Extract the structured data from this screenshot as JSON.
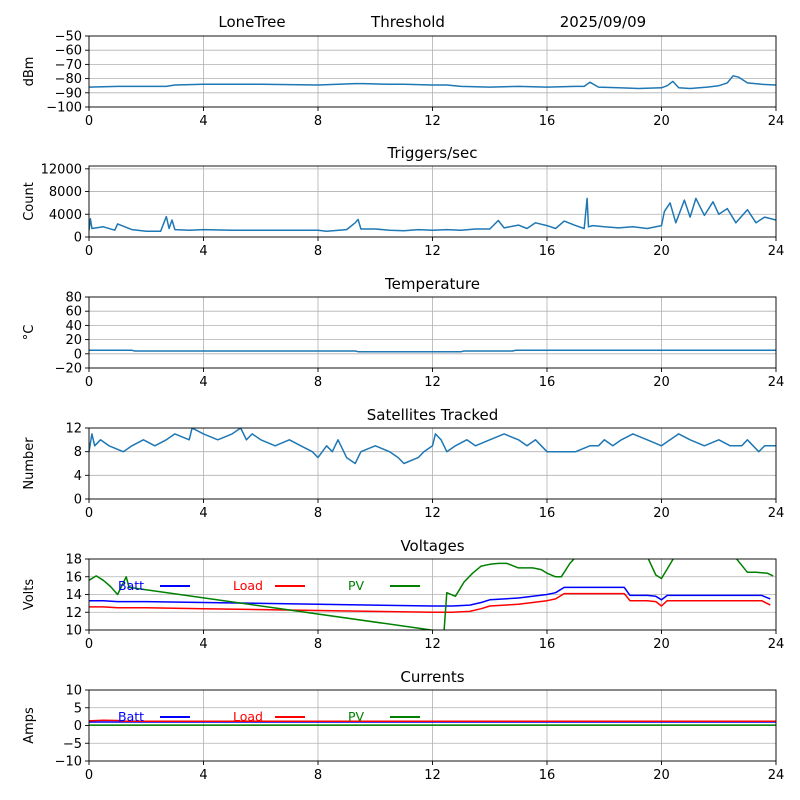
{
  "header": {
    "station": "LoneTree",
    "mode": "Threshold",
    "date": "2025/09/09"
  },
  "colors": {
    "series": "#1f77b4",
    "batt": "#0000ff",
    "load": "#ff0000",
    "pv": "#008000",
    "grid": "#b0b0b0"
  },
  "chart_data": [
    {
      "type": "line",
      "title": "",
      "ylabel": "dBm",
      "xlim": [
        0,
        24
      ],
      "ylim": [
        -100,
        -50
      ],
      "xticks": [
        "0",
        "4",
        "8",
        "12",
        "16",
        "20",
        "24"
      ],
      "yticks": [
        -100,
        -90,
        -80,
        -70,
        -60,
        -50
      ],
      "ytick_labels": [
        "−100",
        "−90",
        "−80",
        "−70",
        "−60",
        "−50"
      ],
      "grid": true,
      "series": [
        {
          "x": [
            0,
            1,
            2,
            2.7,
            3,
            4,
            6,
            8,
            9.3,
            9.6,
            10.5,
            11,
            12,
            12.5,
            13,
            14,
            15,
            16,
            17,
            17.3,
            17.5,
            17.8,
            18.5,
            19.2,
            20,
            20.2,
            20.4,
            20.6,
            21,
            21.6,
            22,
            22.3,
            22.5,
            22.7,
            23,
            23.5,
            24
          ],
          "y": [
            -86,
            -85.5,
            -85.5,
            -85.5,
            -84.5,
            -84,
            -84,
            -84.5,
            -83.5,
            -83.5,
            -84,
            -84,
            -84.5,
            -84.5,
            -85.5,
            -86,
            -85.5,
            -86,
            -85.5,
            -85.5,
            -82.5,
            -86,
            -86.5,
            -87,
            -86.5,
            -85,
            -82,
            -86.5,
            -87,
            -86,
            -85,
            -83,
            -78,
            -79,
            -83,
            -84,
            -84.5
          ]
        }
      ]
    },
    {
      "type": "line",
      "title": "Triggers/sec",
      "ylabel": "Count",
      "xlim": [
        0,
        24
      ],
      "ylim": [
        0,
        12500
      ],
      "xticks": [
        "0",
        "4",
        "8",
        "12",
        "16",
        "20",
        "24"
      ],
      "yticks": [
        0,
        4000,
        8000,
        12000
      ],
      "ytick_labels": [
        "0",
        "4000",
        "8000",
        "12000"
      ],
      "grid": true,
      "series": [
        {
          "x": [
            0,
            0.05,
            0.1,
            0.5,
            0.9,
            1,
            1.5,
            2,
            2.5,
            2.7,
            2.8,
            2.9,
            3,
            3.5,
            4,
            5,
            6,
            7,
            8,
            8.3,
            9,
            9.3,
            9.4,
            9.5,
            10,
            10.5,
            11,
            11.5,
            12,
            12.5,
            13,
            13.5,
            14,
            14.3,
            14.5,
            15,
            15.3,
            15.6,
            16,
            16.3,
            16.6,
            17,
            17.3,
            17.4,
            17.45,
            17.6,
            18,
            18.5,
            19,
            19.5,
            20,
            20.1,
            20.3,
            20.5,
            20.8,
            21,
            21.2,
            21.5,
            21.8,
            22,
            22.3,
            22.6,
            23,
            23.3,
            23.6,
            24
          ],
          "y": [
            1200,
            3200,
            1500,
            1800,
            1200,
            2300,
            1300,
            1000,
            1000,
            3600,
            1500,
            3000,
            1300,
            1200,
            1300,
            1200,
            1200,
            1200,
            1200,
            1000,
            1300,
            2500,
            3100,
            1400,
            1400,
            1200,
            1100,
            1300,
            1200,
            1300,
            1200,
            1400,
            1400,
            2900,
            1600,
            2100,
            1500,
            2500,
            2000,
            1500,
            2800,
            2000,
            1500,
            6800,
            1800,
            2000,
            1800,
            1600,
            1800,
            1500,
            2000,
            4500,
            6000,
            2500,
            6500,
            3500,
            6800,
            3800,
            6200,
            4000,
            5000,
            2500,
            4800,
            2500,
            3500,
            3000
          ]
        }
      ]
    },
    {
      "type": "line",
      "title": "Temperature",
      "ylabel": "°C",
      "xlim": [
        0,
        24
      ],
      "ylim": [
        -20,
        80
      ],
      "xticks": [
        "0",
        "4",
        "8",
        "12",
        "16",
        "20",
        "24"
      ],
      "yticks": [
        -20,
        0,
        20,
        40,
        60,
        80
      ],
      "ytick_labels": [
        "−20",
        "0",
        "20",
        "40",
        "60",
        "80"
      ],
      "grid": true,
      "series": [
        {
          "x": [
            0,
            1.5,
            1.6,
            9.3,
            9.4,
            13,
            13.1,
            14.8,
            14.9,
            24
          ],
          "y": [
            5,
            5,
            4,
            4,
            3,
            3,
            4,
            4,
            5,
            5
          ]
        }
      ]
    },
    {
      "type": "line",
      "title": "Satellites Tracked",
      "ylabel": "Number",
      "xlim": [
        0,
        24
      ],
      "ylim": [
        0,
        12
      ],
      "xticks": [
        "0",
        "4",
        "8",
        "12",
        "16",
        "20",
        "24"
      ],
      "yticks": [
        0,
        4,
        8,
        12
      ],
      "ytick_labels": [
        "0",
        "4",
        "8",
        "12"
      ],
      "grid": true,
      "series": [
        {
          "x": [
            0,
            0.1,
            0.2,
            0.4,
            0.7,
            1.2,
            1.5,
            1.9,
            2.3,
            2.7,
            3,
            3.5,
            3.6,
            4,
            4.5,
            5,
            5.3,
            5.5,
            5.7,
            6,
            6.5,
            7,
            7.4,
            7.8,
            8,
            8.3,
            8.5,
            8.7,
            9,
            9.3,
            9.5,
            10,
            10.5,
            10.8,
            11,
            11.5,
            11.7,
            12,
            12.1,
            12.3,
            12.5,
            12.8,
            13.2,
            13.5,
            14,
            14.5,
            15,
            15.3,
            15.6,
            16,
            16.5,
            17,
            17.5,
            17.8,
            18,
            18.3,
            18.6,
            19,
            19.5,
            20,
            20.3,
            20.6,
            21,
            21.5,
            22,
            22.4,
            22.8,
            23,
            23.2,
            23.4,
            23.6,
            24
          ],
          "y": [
            8,
            11,
            9,
            10,
            9,
            8,
            9,
            10,
            9,
            10,
            11,
            10,
            12,
            11,
            10,
            11,
            12,
            10,
            11,
            10,
            9,
            10,
            9,
            8,
            7,
            9,
            8,
            10,
            7,
            6,
            8,
            9,
            8,
            7,
            6,
            7,
            8,
            9,
            11,
            10,
            8,
            9,
            10,
            9,
            10,
            11,
            10,
            9,
            10,
            8,
            8,
            8,
            9,
            9,
            10,
            9,
            10,
            11,
            10,
            9,
            10,
            11,
            10,
            9,
            10,
            9,
            9,
            10,
            9,
            8,
            9,
            9
          ]
        }
      ]
    },
    {
      "type": "line",
      "title": "Voltages",
      "ylabel": "Volts",
      "xlim": [
        0,
        24
      ],
      "ylim": [
        10,
        18
      ],
      "xticks": [
        "0",
        "4",
        "8",
        "12",
        "16",
        "20",
        "24"
      ],
      "yticks": [
        10,
        12,
        14,
        16,
        18
      ],
      "ytick_labels": [
        "10",
        "12",
        "14",
        "16",
        "18"
      ],
      "grid": true,
      "legend": "top-left",
      "series": [
        {
          "name": "Batt",
          "color": "#0000ff",
          "x": [
            0,
            0.5,
            1,
            2,
            4,
            8,
            12,
            12.7,
            13.3,
            13.7,
            14,
            15,
            16,
            16.3,
            16.6,
            17,
            18,
            18.7,
            18.9,
            19.5,
            19.8,
            20,
            20.2,
            21,
            23,
            23.5,
            23.8
          ],
          "y": [
            13.3,
            13.3,
            13.2,
            13.2,
            13.1,
            12.9,
            12.7,
            12.7,
            12.8,
            13.1,
            13.4,
            13.6,
            14.0,
            14.2,
            14.8,
            14.8,
            14.8,
            14.8,
            13.9,
            13.9,
            13.8,
            13.4,
            13.9,
            13.9,
            13.9,
            13.9,
            13.5
          ]
        },
        {
          "name": "Load",
          "color": "#ff0000",
          "x": [
            0,
            0.5,
            1,
            2,
            4,
            8,
            12,
            12.7,
            13.3,
            13.7,
            14,
            15,
            16,
            16.3,
            16.6,
            17,
            18,
            18.7,
            18.9,
            19.5,
            19.8,
            20,
            20.2,
            21,
            23,
            23.5,
            23.8
          ],
          "y": [
            12.6,
            12.6,
            12.5,
            12.5,
            12.4,
            12.2,
            12.0,
            12.0,
            12.1,
            12.4,
            12.7,
            12.9,
            13.3,
            13.5,
            14.1,
            14.1,
            14.1,
            14.1,
            13.3,
            13.3,
            13.2,
            12.7,
            13.3,
            13.3,
            13.3,
            13.3,
            12.8
          ]
        },
        {
          "name": "PV",
          "color": "#008000",
          "x": [
            0,
            0.25,
            0.5,
            0.75,
            1.0,
            1.3,
            1.4,
            12.4,
            12.5,
            12.8,
            13.1,
            13.4,
            13.7,
            14.0,
            14.3,
            14.6,
            15.0,
            15.5,
            15.8,
            16.0,
            16.3,
            16.5,
            16.8,
            17,
            17.2,
            18.8,
            19.0,
            19.5,
            19.8,
            20.0,
            20.5,
            21,
            22.5,
            23.0,
            23.3,
            23.7,
            23.9
          ],
          "y": [
            15.6,
            16.1,
            15.6,
            14.9,
            14.0,
            16.0,
            14.8,
            9.8,
            14.2,
            13.8,
            15.4,
            16.4,
            17.2,
            17.4,
            17.5,
            17.5,
            17.0,
            17.0,
            16.8,
            16.4,
            16.0,
            16.0,
            17.5,
            18.2,
            18.5,
            18.2,
            18.1,
            18.3,
            16.2,
            15.8,
            18.5,
            18.8,
            18.5,
            16.5,
            16.5,
            16.4,
            16.1
          ]
        }
      ]
    },
    {
      "type": "line",
      "title": "Currents",
      "ylabel": "Amps",
      "xlim": [
        0,
        24
      ],
      "ylim": [
        -10,
        10
      ],
      "xticks": [
        "0",
        "4",
        "8",
        "12",
        "16",
        "20",
        "24"
      ],
      "yticks": [
        -10,
        -5,
        0,
        5,
        10
      ],
      "ytick_labels": [
        "−10",
        "−5",
        "0",
        "5",
        "10"
      ],
      "grid": true,
      "legend": "top-left",
      "series": [
        {
          "name": "Batt",
          "color": "#0000ff",
          "x": [
            0,
            24
          ],
          "y": [
            1.0,
            1.0
          ]
        },
        {
          "name": "Load",
          "color": "#ff0000",
          "x": [
            0,
            0.5,
            1,
            1.3,
            4,
            12,
            16,
            20,
            24
          ],
          "y": [
            1.3,
            1.5,
            1.4,
            1.2,
            1.2,
            1.2,
            1.2,
            1.2,
            1.2
          ]
        },
        {
          "name": "PV",
          "color": "#008000",
          "x": [
            0,
            24
          ],
          "y": [
            0.1,
            0.1
          ]
        }
      ]
    }
  ]
}
